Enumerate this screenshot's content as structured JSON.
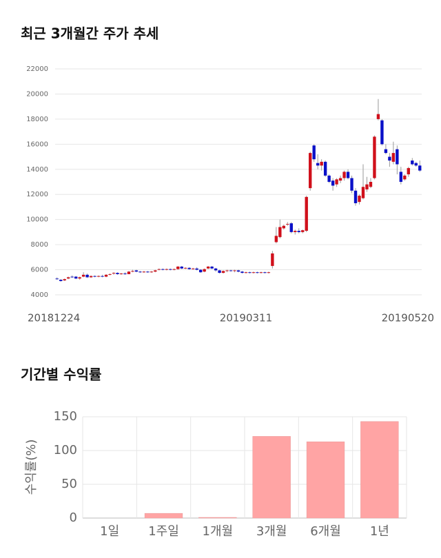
{
  "chart_data": [
    {
      "type": "candlestick",
      "title": "최근 3개월간 주가 추세",
      "categories": [
        "20181224",
        null,
        null,
        null,
        null,
        null,
        null,
        null,
        null,
        null,
        null,
        null,
        null,
        null,
        null,
        null,
        null,
        null,
        null,
        null,
        null,
        null,
        null,
        null,
        null,
        null,
        null,
        null,
        null,
        null,
        null,
        null,
        null,
        null,
        null,
        null,
        null,
        null,
        null,
        null,
        null,
        null,
        null,
        null,
        null,
        null,
        null,
        null,
        null,
        null,
        "20190311",
        null,
        null,
        null,
        null,
        null,
        null,
        null,
        null,
        null,
        null,
        null,
        null,
        null,
        null,
        null,
        null,
        null,
        null,
        null,
        null,
        null,
        null,
        null,
        null,
        null,
        null,
        null,
        null,
        null,
        null,
        null,
        null,
        null,
        null,
        null,
        null,
        null,
        null,
        null,
        null,
        null,
        null,
        null,
        null,
        null,
        "20190520"
      ],
      "open": [
        5300,
        5200,
        5150,
        5300,
        5450,
        5450,
        5300,
        5450,
        5600,
        5400,
        5500,
        5450,
        5500,
        5450,
        5600,
        5700,
        5750,
        5650,
        5700,
        5650,
        5850,
        5950,
        5850,
        5800,
        5850,
        5800,
        5850,
        6000,
        6050,
        6000,
        6050,
        6000,
        6050,
        6250,
        6100,
        6150,
        6050,
        6100,
        6000,
        5850,
        6100,
        6250,
        6100,
        5950,
        5750,
        5900,
        5950,
        5900,
        5950,
        5850,
        5750,
        5800,
        5750,
        5800,
        5750,
        5800,
        5750,
        6300,
        8200,
        8600,
        9300,
        9600,
        9700,
        9000,
        9100,
        9000,
        9100,
        12500,
        15900,
        14500,
        14300,
        14600,
        13500,
        13100,
        12800,
        13100,
        13300,
        13800,
        13300,
        12300,
        11400,
        11700,
        12400,
        12600,
        13300,
        18000,
        17900,
        15600,
        15000,
        14600,
        15600,
        13800,
        13200,
        13600,
        14700,
        14500,
        14300
      ],
      "high": [
        5400,
        5250,
        5300,
        5450,
        5550,
        5500,
        5450,
        5800,
        5700,
        5550,
        5550,
        5550,
        5600,
        5650,
        5700,
        5800,
        5800,
        5750,
        5800,
        5900,
        6000,
        6000,
        5900,
        5900,
        5900,
        5900,
        6000,
        6100,
        6100,
        6100,
        6100,
        6100,
        6300,
        6300,
        6200,
        6200,
        6150,
        6200,
        6050,
        6100,
        6300,
        6300,
        6150,
        6000,
        5950,
        6000,
        6000,
        6000,
        6000,
        5900,
        5850,
        5850,
        5850,
        5850,
        5850,
        5850,
        5850,
        7500,
        9400,
        10000,
        9600,
        9800,
        9800,
        9200,
        9300,
        9200,
        11900,
        15400,
        16000,
        15200,
        14800,
        14700,
        13600,
        13300,
        13300,
        13500,
        13900,
        14000,
        13500,
        12500,
        12000,
        14400,
        13400,
        13300,
        16700,
        19600,
        18000,
        16000,
        15300,
        16200,
        15900,
        14200,
        13600,
        14200,
        14900,
        14600,
        14700
      ],
      "low": [
        5200,
        5050,
        5100,
        5250,
        5350,
        5250,
        5200,
        5400,
        5350,
        5350,
        5400,
        5400,
        5400,
        5400,
        5550,
        5600,
        5600,
        5600,
        5600,
        5650,
        5800,
        5800,
        5750,
        5750,
        5750,
        5750,
        5800,
        5950,
        5950,
        5950,
        5950,
        5950,
        6000,
        6050,
        6050,
        6000,
        6000,
        5950,
        5750,
        5800,
        6050,
        6050,
        5850,
        5700,
        5700,
        5800,
        5850,
        5800,
        5800,
        5700,
        5700,
        5700,
        5700,
        5700,
        5700,
        5700,
        5700,
        6100,
        8100,
        8500,
        9200,
        9500,
        8900,
        8800,
        8900,
        8900,
        9000,
        12300,
        14600,
        14000,
        13900,
        13400,
        12900,
        12300,
        12600,
        12900,
        13100,
        13200,
        12100,
        11100,
        11200,
        11600,
        12200,
        12500,
        13200,
        17900,
        15900,
        15200,
        14200,
        14400,
        13600,
        12800,
        13100,
        13400,
        14300,
        14200,
        13800
      ],
      "close": [
        5250,
        5100,
        5250,
        5400,
        5400,
        5300,
        5400,
        5600,
        5400,
        5500,
        5450,
        5500,
        5450,
        5600,
        5650,
        5750,
        5650,
        5700,
        5650,
        5850,
        5900,
        5850,
        5800,
        5850,
        5800,
        5850,
        5950,
        6050,
        6000,
        6050,
        6000,
        6050,
        6250,
        6100,
        6150,
        6050,
        6100,
        6000,
        5800,
        6050,
        6250,
        6100,
        5950,
        5750,
        5900,
        5950,
        5900,
        5950,
        5850,
        5750,
        5800,
        5750,
        5800,
        5750,
        5800,
        5750,
        5800,
        7300,
        8700,
        9400,
        9500,
        9650,
        9000,
        9100,
        9000,
        9150,
        11800,
        15300,
        14800,
        14300,
        14600,
        13500,
        13000,
        12700,
        13200,
        13300,
        13800,
        13300,
        12300,
        11300,
        11900,
        12600,
        12800,
        13000,
        16600,
        18400,
        16000,
        15300,
        14700,
        15300,
        14400,
        13000,
        13500,
        14100,
        14400,
        14300,
        13900
      ],
      "up_color": "#d0101b",
      "down_color": "#0a10c8",
      "ylim": [
        4000,
        22000
      ],
      "yticks": [
        4000,
        6000,
        8000,
        10000,
        12000,
        14000,
        16000,
        18000,
        20000,
        22000
      ],
      "grid": true
    },
    {
      "type": "bar",
      "title": "기간별 수익률",
      "y_label": "수익률(%)",
      "categories": [
        "1일",
        "1주일",
        "1개월",
        "3개월",
        "6개월",
        "1년"
      ],
      "values": [
        0,
        7,
        1,
        121,
        113,
        143
      ],
      "color": "#ffa4a4",
      "ylim": [
        0,
        150
      ],
      "yticks": [
        0,
        50,
        100,
        150
      ],
      "grid": true
    }
  ]
}
